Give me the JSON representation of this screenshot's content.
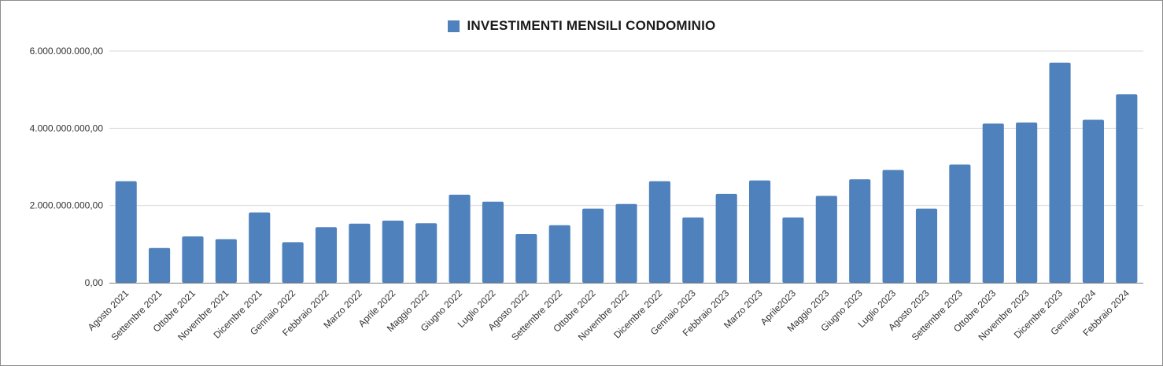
{
  "chart_data": {
    "type": "bar",
    "legend_position": "top-center",
    "grid": true,
    "ylim": [
      0,
      6000000000
    ],
    "y_ticks": [
      "0,00",
      "2.000.000.000,00",
      "4.000.000.000,00",
      "6.000.000.000,00"
    ],
    "y_tick_values": [
      0,
      2000000000,
      4000000000,
      6000000000
    ],
    "categories": [
      "Agosto 2021",
      "Settembre 2021",
      "Ottobre 2021",
      "Novembre 2021",
      "Dicembre 2021",
      "Gennaio 2022",
      "Febbraio 2022",
      "Marzo 2022",
      "Aprile 2022",
      "Maggio 2022",
      "Giugno 2022",
      "Luglio 2022",
      "Agosto 2022",
      "Settembre 2022",
      "Ottobre 2022",
      "Novembre 2022",
      "Dicembre 2022",
      "Gennaio 2023",
      "Febbraio 2023",
      "Marzo 2023",
      "Aprile2023",
      "Maggio 2023",
      "Giugno 2023",
      "Luglio 2023",
      "Agosto 2023",
      "Settembre 2023",
      "Ottobre 2023",
      "Novembre 2023",
      "Dicembre 2023",
      "Gennaio 2024",
      "Febbraio 2024"
    ],
    "series": [
      {
        "name": "INVESTIMENTI MENSILI CONDOMINIO",
        "color": "#4f81bd",
        "values": [
          2630000000,
          900000000,
          1200000000,
          1130000000,
          1820000000,
          1050000000,
          1440000000,
          1530000000,
          1610000000,
          1540000000,
          2280000000,
          2100000000,
          1260000000,
          1490000000,
          1920000000,
          2040000000,
          2630000000,
          1690000000,
          2300000000,
          2650000000,
          1690000000,
          2250000000,
          2680000000,
          2920000000,
          1920000000,
          3060000000,
          4120000000,
          4150000000,
          5700000000,
          4220000000,
          4880000000
        ]
      }
    ]
  },
  "colors": {
    "bar": "#4f81bd",
    "grid": "#d9d9d9",
    "axis": "#808080"
  }
}
